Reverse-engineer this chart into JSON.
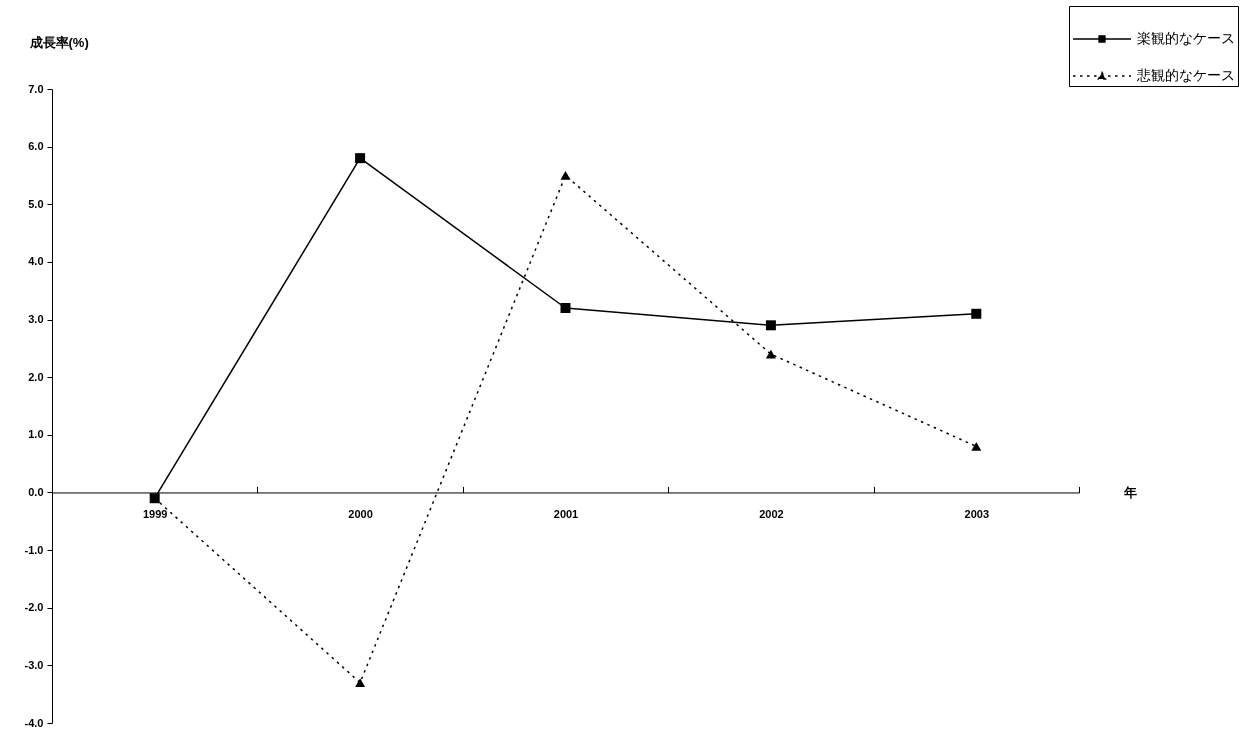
{
  "chart_data": {
    "type": "line",
    "ylabel": "成長率(%)",
    "xlabel": "年",
    "categories": [
      "1999",
      "2000",
      "2001",
      "2002",
      "2003"
    ],
    "series": [
      {
        "name": "楽観的なケース",
        "color": "#000000",
        "values": [
          -0.1,
          5.8,
          3.2,
          2.9,
          3.1
        ],
        "marker": "square",
        "line_style": "solid"
      },
      {
        "name": "悲観的なケース",
        "color": "#000000",
        "values": [
          -0.1,
          -3.3,
          5.5,
          2.4,
          0.8
        ],
        "marker": "triangle",
        "line_style": "dotted"
      }
    ],
    "ylim": [
      -4,
      7
    ],
    "yticks": [
      {
        "value": -4,
        "label": "-4.0"
      },
      {
        "value": -3,
        "label": "-3.0"
      },
      {
        "value": -2,
        "label": "-2.0"
      },
      {
        "value": -1,
        "label": "-1.0"
      },
      {
        "value": 0,
        "label": "0.0"
      },
      {
        "value": 1,
        "label": "1.0"
      },
      {
        "value": 2,
        "label": "2.0"
      },
      {
        "value": 3,
        "label": "3.0"
      },
      {
        "value": 4,
        "label": "4.0"
      },
      {
        "value": 5,
        "label": "5.0"
      },
      {
        "value": 6,
        "label": "6.0"
      },
      {
        "value": 7,
        "label": "7.0"
      }
    ],
    "legend": "top right"
  }
}
